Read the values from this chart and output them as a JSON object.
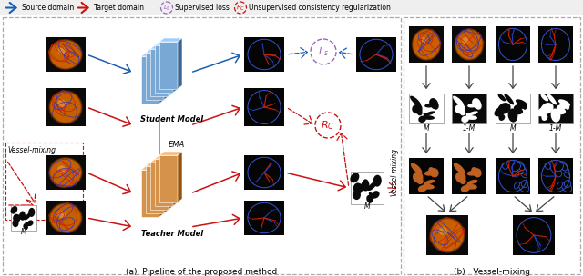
{
  "caption_a": "(a)  Pipeline of the proposed method",
  "caption_b": "(b)   Vessel-mixing",
  "bg_color": "#ffffff",
  "blue_arrow": "#1a5fb4",
  "red_arrow": "#cc1111",
  "gray_arrow": "#444444",
  "student_color": "#7aa8d4",
  "teacher_color": "#d4924a",
  "ema_color_top": "#8ab4d8",
  "ema_color_bot": "#d4924a",
  "ls_color": "#9966bb",
  "rc_color": "#cc1111",
  "vessel_mixing_label_left": "Vessel-mixing",
  "vessel_mixing_label_right": "Vessel-mixing",
  "ema_label": "EMA",
  "student_label": "Student Model",
  "teacher_label": "Teacher Model",
  "M_label": "M",
  "mask_labels": [
    "M",
    "1-M",
    "M",
    "1-M"
  ]
}
